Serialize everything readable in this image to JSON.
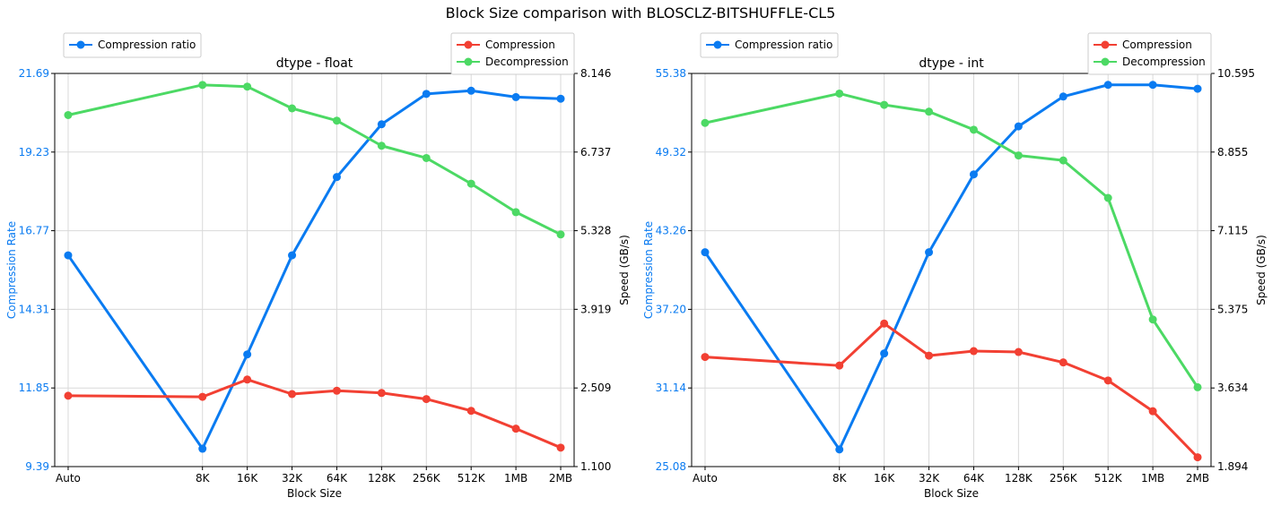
{
  "figure_title": "Block Size comparison with BLOSCLZ-BITSHUFFLE-CL5",
  "colors": {
    "compression_ratio": "#0a7bf1",
    "compression": "#f24033",
    "decompression": "#4cd964",
    "grid": "#d9d9d9",
    "axis": "#000000"
  },
  "chart_data": [
    {
      "type": "line",
      "title": "dtype - float",
      "xlabel": "Block Size",
      "ylabel_left": "Compression Rate",
      "ylabel_right": "Speed (GB/s)",
      "categories": [
        "Auto",
        "8K",
        "16K",
        "32K",
        "64K",
        "128K",
        "256K",
        "512K",
        "1MB",
        "2MB"
      ],
      "x": [
        0,
        3,
        4,
        5,
        6,
        7,
        8,
        9,
        10,
        11
      ],
      "ylim_left": [
        9.39,
        21.69
      ],
      "yticks_left": [
        "9.39",
        "11.85",
        "14.31",
        "16.77",
        "19.23",
        "21.69"
      ],
      "ylim_right": [
        1.1,
        8.146
      ],
      "yticks_right": [
        "1.100",
        "2.509",
        "3.919",
        "5.328",
        "6.737",
        "8.146"
      ],
      "grid": true,
      "legend_left": {
        "position": "top-left",
        "entries": [
          "Compression ratio"
        ]
      },
      "legend_right": {
        "position": "top-right",
        "entries": [
          "Compression",
          "Decompression"
        ]
      },
      "series": [
        {
          "name": "Compression ratio",
          "axis": "left",
          "color": "#0a7bf1",
          "values": [
            16.0,
            9.95,
            12.9,
            16.0,
            18.45,
            20.1,
            21.05,
            21.15,
            20.95,
            20.9
          ]
        },
        {
          "name": "Compression",
          "axis": "right",
          "color": "#f24033",
          "values": [
            2.37,
            2.35,
            2.66,
            2.4,
            2.46,
            2.42,
            2.31,
            2.1,
            1.78,
            1.44
          ]
        },
        {
          "name": "Decompression",
          "axis": "right",
          "color": "#4cd964",
          "values": [
            7.4,
            7.94,
            7.91,
            7.52,
            7.3,
            6.85,
            6.63,
            6.17,
            5.66,
            5.26
          ]
        }
      ]
    },
    {
      "type": "line",
      "title": "dtype - int",
      "xlabel": "Block Size",
      "ylabel_left": "Compression Rate",
      "ylabel_right": "Speed (GB/s)",
      "categories": [
        "Auto",
        "8K",
        "16K",
        "32K",
        "64K",
        "128K",
        "256K",
        "512K",
        "1MB",
        "2MB"
      ],
      "x": [
        0,
        3,
        4,
        5,
        6,
        7,
        8,
        9,
        10,
        11
      ],
      "ylim_left": [
        25.08,
        55.38
      ],
      "yticks_left": [
        "25.08",
        "31.14",
        "37.20",
        "43.26",
        "49.32",
        "55.38"
      ],
      "ylim_right": [
        1.894,
        10.595
      ],
      "yticks_right": [
        "1.894",
        "3.634",
        "5.375",
        "7.115",
        "8.855",
        "10.595"
      ],
      "grid": true,
      "legend_left": {
        "position": "top-left",
        "entries": [
          "Compression ratio"
        ]
      },
      "legend_right": {
        "position": "top-right",
        "entries": [
          "Compression",
          "Decompression"
        ]
      },
      "series": [
        {
          "name": "Compression ratio",
          "axis": "left",
          "color": "#0a7bf1",
          "values": [
            41.6,
            26.4,
            33.8,
            41.6,
            47.6,
            51.3,
            53.6,
            54.5,
            54.5,
            54.2
          ]
        },
        {
          "name": "Compression",
          "axis": "right",
          "color": "#f24033",
          "values": [
            4.32,
            4.13,
            5.06,
            4.35,
            4.45,
            4.43,
            4.2,
            3.8,
            3.12,
            2.1
          ]
        },
        {
          "name": "Decompression",
          "axis": "right",
          "color": "#4cd964",
          "values": [
            9.5,
            10.15,
            9.9,
            9.75,
            9.35,
            8.78,
            8.67,
            7.84,
            5.15,
            3.65
          ]
        }
      ]
    }
  ]
}
